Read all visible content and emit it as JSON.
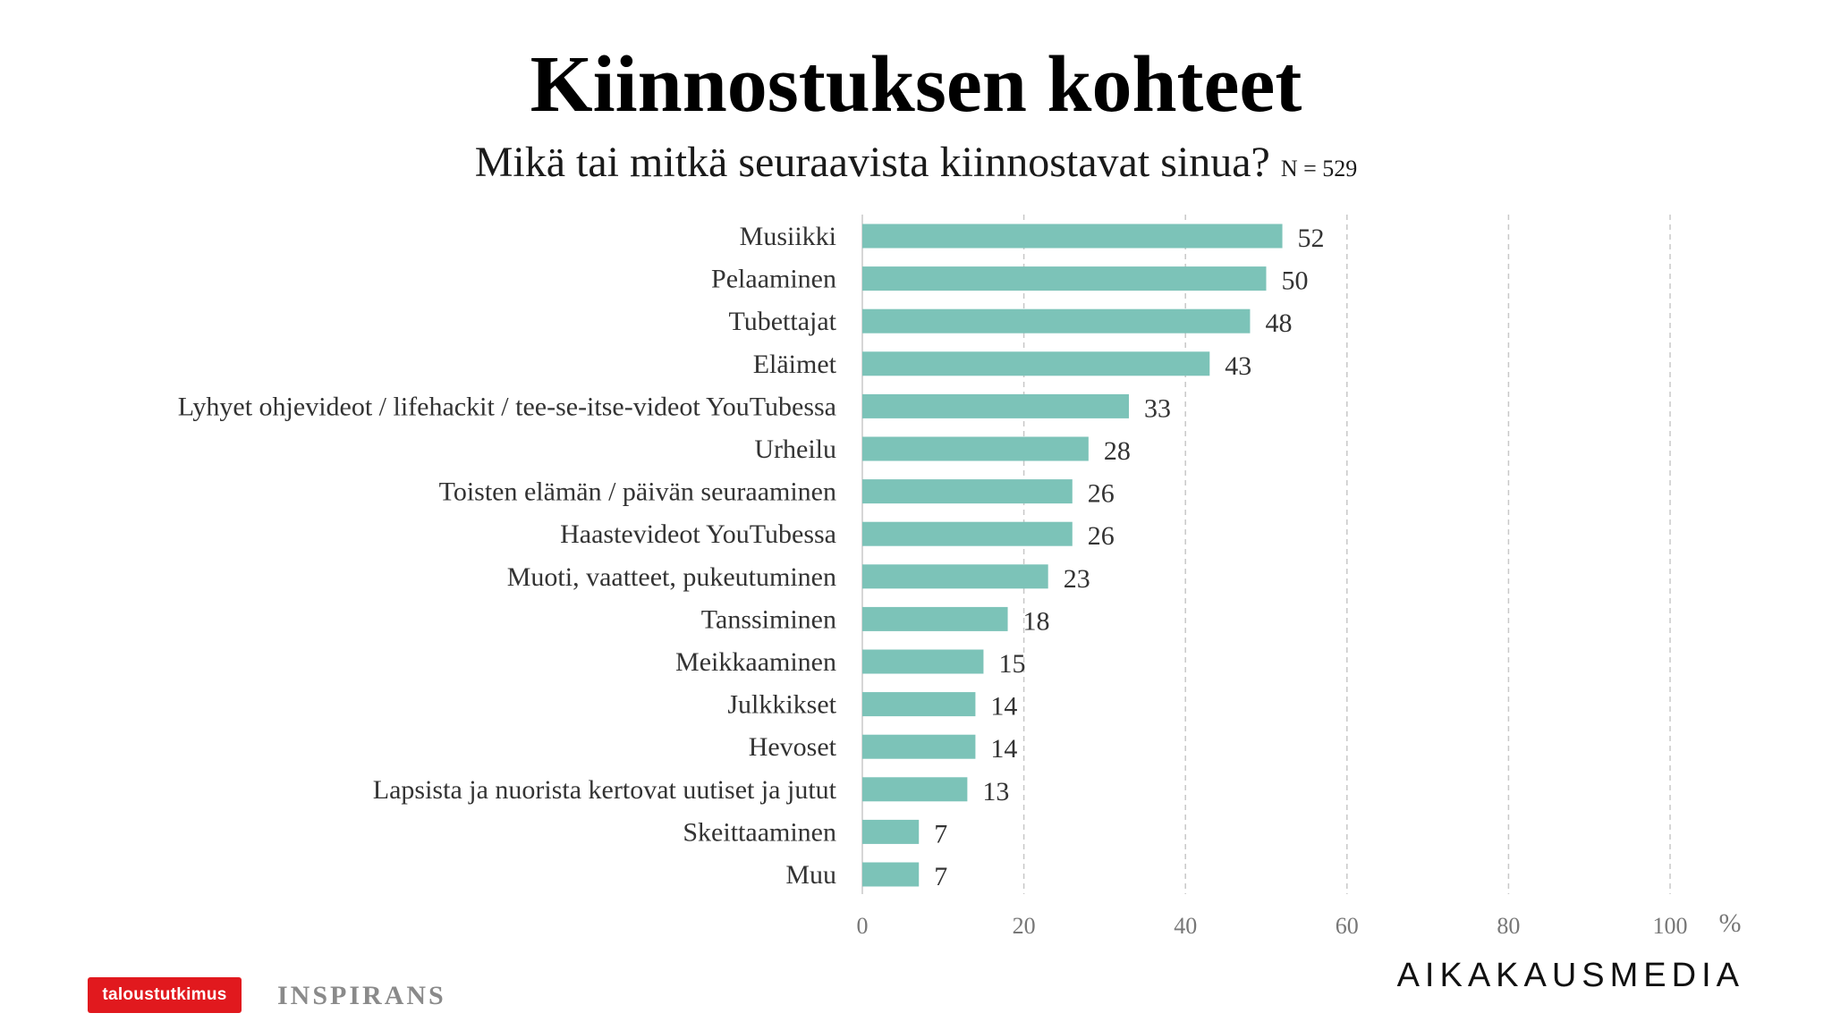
{
  "header": {
    "title": "Kiinnostuksen kohteet",
    "subtitle": "Mikä tai mitkä seuraavista kiinnostavat sinua?",
    "sample_size": "N = 529"
  },
  "chart_data": {
    "type": "bar",
    "orientation": "horizontal",
    "title": "Kiinnostuksen kohteet",
    "subtitle": "Mikä tai mitkä seuraavista kiinnostavat sinua?",
    "categories": [
      "Musiikki",
      "Pelaaminen",
      "Tubettajat",
      "Eläimet",
      "Lyhyet ohjevideot / lifehackit / tee-se-itse-videot YouTubessa",
      "Urheilu",
      "Toisten elämän / päivän seuraaminen",
      "Haastevideot YouTubessa",
      "Muoti, vaatteet, pukeutuminen",
      "Tanssiminen",
      "Meikkaaminen",
      "Julkkikset",
      "Hevoset",
      "Lapsista ja nuorista kertovat uutiset ja jutut",
      "Skeittaaminen",
      "Muu"
    ],
    "values": [
      52,
      50,
      48,
      43,
      33,
      28,
      26,
      26,
      23,
      18,
      15,
      14,
      14,
      13,
      7,
      7
    ],
    "value_labels": [
      "52",
      "50",
      "48",
      "43",
      "33",
      "28",
      "26",
      "26",
      "23",
      "18",
      "15",
      "14",
      "14",
      "13",
      "7",
      "7"
    ],
    "xlim": [
      0,
      100
    ],
    "xticks": [
      0,
      20,
      40,
      60,
      80,
      100
    ],
    "xtick_labels": [
      "0",
      "20",
      "40",
      "60",
      "80",
      "100"
    ],
    "unit_label": "%",
    "grid": "vertical dashed",
    "bar_color": "#7cc3b8",
    "grid_color": "#c8c8c8"
  },
  "footer": {
    "logo_left": "taloustutkimus",
    "logo_middle": "INSPIRANS",
    "logo_right": "AIKAKAUSMEDIA"
  },
  "colors": {
    "brand_red": "#e1191e"
  }
}
